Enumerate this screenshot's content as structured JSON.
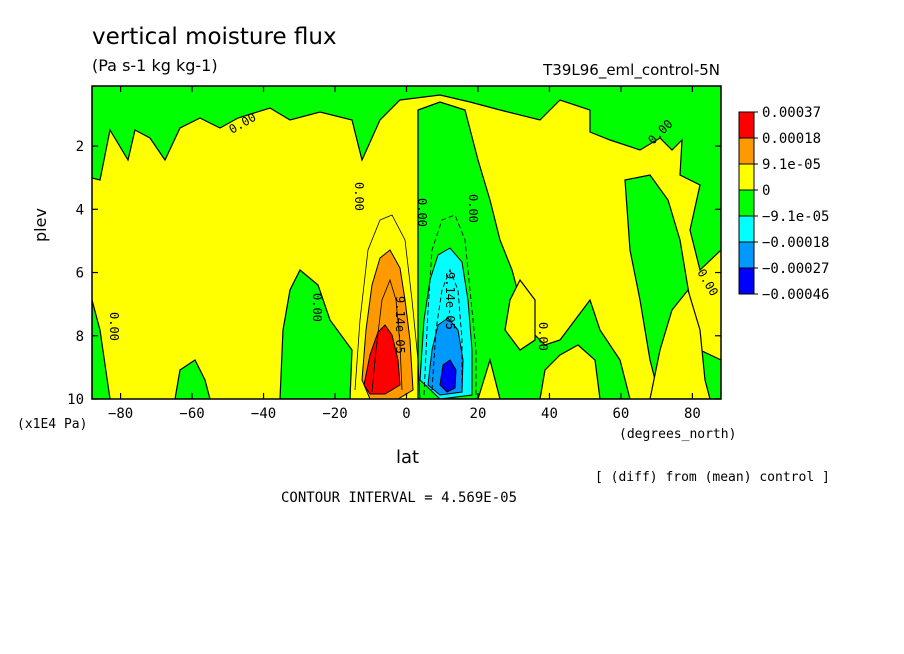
{
  "chart_data": {
    "type": "heatmap",
    "title": "vertical moisture flux",
    "units": "(Pa s-1 kg kg-1)",
    "run_id": "T39L96_eml_control-5N",
    "xlabel": "lat",
    "xunit": "(degrees_north)",
    "ylabel": "plev",
    "yunit": "(x1E4 Pa)",
    "xlim": [
      -88,
      88
    ],
    "ylim": [
      10,
      0.1
    ],
    "x_ticks": [
      -80,
      -60,
      -40,
      -20,
      0,
      20,
      40,
      60,
      80
    ],
    "y_ticks": [
      2,
      4,
      6,
      8,
      10
    ],
    "note": "[ (diff) from (mean) control ]",
    "contour_interval_text": "CONTOUR INTERVAL = 4.569E-05",
    "legend": {
      "labels": [
        "0.00037",
        "0.00018",
        "9.1e-05",
        "0",
        "−9.1e-05",
        "−0.00018",
        "−0.00027",
        "−0.00046"
      ],
      "colors": [
        "#ff0000",
        "#ff9900",
        "#ffff00",
        "#00ff00",
        "#00ffff",
        "#0099ff",
        "#0000ff"
      ]
    },
    "contour_labels": [
      "0.00",
      "0.00",
      "0.00",
      "0.00",
      "0.00",
      "0.00",
      "0.00",
      "0.00",
      "0.00",
      "9.14e-05",
      "9.14e-05"
    ],
    "features": [
      {
        "kind": "positive-maximum",
        "lat": -8,
        "plev": 9.0,
        "value": 0.00037
      },
      {
        "kind": "negative-minimum",
        "lat": 11,
        "plev": 9.0,
        "value": -0.00046
      }
    ]
  }
}
